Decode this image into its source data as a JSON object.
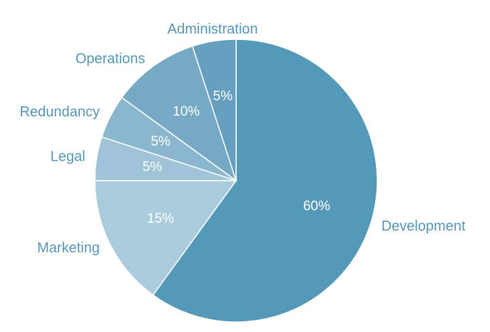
{
  "chart_data": {
    "type": "pie",
    "title": "",
    "start_angle_deg": 0,
    "direction": "clockwise",
    "legend": "none",
    "slices": [
      {
        "label": "Development",
        "value": 60,
        "value_label": "60%",
        "color": "#5599b9"
      },
      {
        "label": "Marketing",
        "value": 15,
        "value_label": "15%",
        "color": "#aacbdc"
      },
      {
        "label": "Legal",
        "value": 5,
        "value_label": "5%",
        "color": "#9fc4d7"
      },
      {
        "label": "Redundancy",
        "value": 5,
        "value_label": "5%",
        "color": "#8ab7cd"
      },
      {
        "label": "Operations",
        "value": 10,
        "value_label": "10%",
        "color": "#76aac4"
      },
      {
        "label": "Administration",
        "value": 5,
        "value_label": "5%",
        "color": "#66a0be"
      }
    ]
  }
}
